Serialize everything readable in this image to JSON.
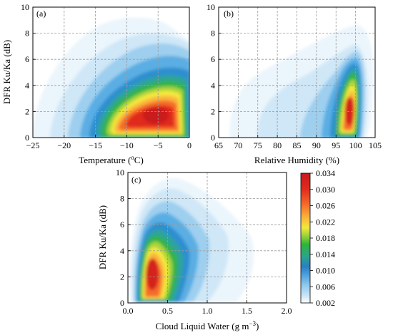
{
  "chart_data": [
    {
      "type": "heatmap",
      "panel_label": "(a)",
      "xlabel": "Temperature (",
      "xlabel_unit_sup": "o",
      "xlabel_unit": "C)",
      "ylabel": "DFR Ku/Ka (dB)",
      "xlim": [
        -25,
        0
      ],
      "ylim": [
        0,
        10
      ],
      "xticks": [
        -25,
        -20,
        -15,
        -10,
        -5,
        0
      ],
      "yticks": [
        0,
        2,
        4,
        6,
        8,
        10
      ],
      "grid": true,
      "density_peak": {
        "x": -5.5,
        "y": 2.6
      }
    },
    {
      "type": "heatmap",
      "panel_label": "(b)",
      "xlabel": "Relative Humidity (%)",
      "xlim": [
        65,
        105
      ],
      "ylim": [
        0,
        10
      ],
      "xticks": [
        65,
        70,
        75,
        80,
        85,
        90,
        95,
        100,
        105
      ],
      "yticks": [
        0,
        2,
        4,
        6,
        8,
        10
      ],
      "grid": true,
      "density_peak": {
        "x": 97.5,
        "y": 2.6
      }
    },
    {
      "type": "heatmap",
      "panel_label": "(c)",
      "xlabel": "Cloud Liquid Water (g m",
      "xlabel_unit_sup": "−3",
      "xlabel_unit": ")",
      "ylabel": "DFR Ku/Ka (dB)",
      "xlim": [
        0.0,
        2.0
      ],
      "ylim": [
        0,
        10
      ],
      "xticks": [
        "0.0",
        "0.5",
        "1.0",
        "1.5",
        "2.0"
      ],
      "yticks": [
        0,
        2,
        4,
        6,
        8,
        10
      ],
      "grid": true,
      "density_peak": {
        "x": 0.3,
        "y": 2.6
      }
    }
  ],
  "colorbar": {
    "ticks": [
      "0.034",
      "0.030",
      "0.026",
      "0.022",
      "0.018",
      "0.014",
      "0.010",
      "0.006",
      "0.002"
    ],
    "min": 0.002,
    "max": 0.034,
    "colors": [
      "#ffffff",
      "#c6e4f6",
      "#8cc7ec",
      "#4a9fdc",
      "#2a7fc2",
      "#2ba58c",
      "#2cb53a",
      "#9fd23a",
      "#f0ea3a",
      "#fbb33a",
      "#f56a2a",
      "#e02a1e",
      "#c8191c"
    ]
  }
}
